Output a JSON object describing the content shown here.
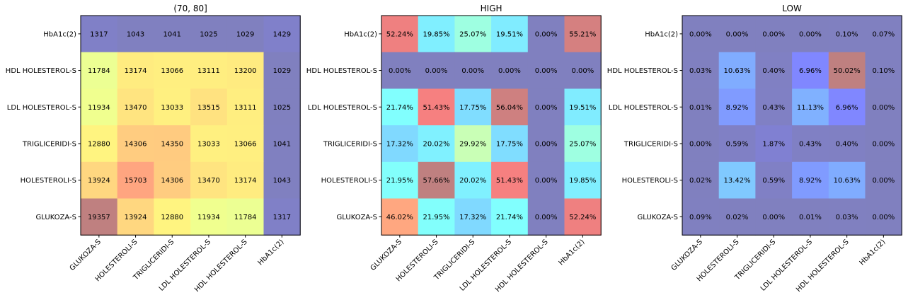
{
  "chart_data": [
    {
      "type": "heatmap",
      "title": "(70, 80]",
      "x_categories": [
        "GLUKOZA-S",
        "HOLESTEROLI-S",
        "TRIGLICERIDI-S",
        "LDL HOLESTEROL-S",
        "HDL HOLESTEROL-S",
        "HbA1c(2)"
      ],
      "y_categories": [
        "HbA1c(2)",
        "HDL HOLESTEROL-S",
        "LDL HOLESTEROL-S",
        "TRIGLICERIDI-S",
        "HOLESTEROLI-S",
        "GLUKOZA-S"
      ],
      "values": [
        [
          1317,
          1043,
          1041,
          1025,
          1029,
          1429
        ],
        [
          11784,
          13174,
          13066,
          13111,
          13200,
          1029
        ],
        [
          11934,
          13470,
          13033,
          13515,
          13111,
          1025
        ],
        [
          12880,
          14306,
          14350,
          13033,
          13066,
          1041
        ],
        [
          13924,
          15703,
          14306,
          13470,
          13174,
          1043
        ],
        [
          19357,
          13924,
          12880,
          11934,
          11784,
          1317
        ]
      ],
      "labels": [
        [
          "1317",
          "1043",
          "1041",
          "1025",
          "1029",
          "1429"
        ],
        [
          "11784",
          "13174",
          "13066",
          "13111",
          "13200",
          "1029"
        ],
        [
          "11934",
          "13470",
          "13033",
          "13515",
          "13111",
          "1025"
        ],
        [
          "12880",
          "14306",
          "14350",
          "13033",
          "13066",
          "1041"
        ],
        [
          "13924",
          "15703",
          "14306",
          "13470",
          "13174",
          "1043"
        ],
        [
          "19357",
          "13924",
          "12880",
          "11934",
          "11784",
          "1317"
        ]
      ],
      "colorscale": "jet",
      "alpha": 0.5
    },
    {
      "type": "heatmap",
      "title": "HIGH",
      "x_categories": [
        "GLUKOZA-S",
        "HOLESTEROLI-S",
        "TRIGLICERIDI-S",
        "LDL HOLESTEROL-S",
        "HDL HOLESTEROL-S",
        "HbA1c(2)"
      ],
      "y_categories": [
        "HbA1c(2)",
        "HDL HOLESTEROL-S",
        "LDL HOLESTEROL-S",
        "TRIGLICERIDI-S",
        "HOLESTEROLI-S",
        "GLUKOZA-S"
      ],
      "values": [
        [
          52.24,
          19.85,
          25.07,
          19.51,
          0.0,
          55.21
        ],
        [
          0.0,
          0.0,
          0.0,
          0.0,
          0.0,
          0.0
        ],
        [
          21.74,
          51.43,
          17.75,
          56.04,
          0.0,
          19.51
        ],
        [
          17.32,
          20.02,
          29.92,
          17.75,
          0.0,
          25.07
        ],
        [
          21.95,
          57.66,
          20.02,
          51.43,
          0.0,
          19.85
        ],
        [
          46.02,
          21.95,
          17.32,
          21.74,
          0.0,
          52.24
        ]
      ],
      "labels": [
        [
          "52.24%",
          "19.85%",
          "25.07%",
          "19.51%",
          "0.00%",
          "55.21%"
        ],
        [
          "0.00%",
          "0.00%",
          "0.00%",
          "0.00%",
          "0.00%",
          "0.00%"
        ],
        [
          "21.74%",
          "51.43%",
          "17.75%",
          "56.04%",
          "0.00%",
          "19.51%"
        ],
        [
          "17.32%",
          "20.02%",
          "29.92%",
          "17.75%",
          "0.00%",
          "25.07%"
        ],
        [
          "21.95%",
          "57.66%",
          "20.02%",
          "51.43%",
          "0.00%",
          "19.85%"
        ],
        [
          "46.02%",
          "21.95%",
          "17.32%",
          "21.74%",
          "0.00%",
          "52.24%"
        ]
      ],
      "colorscale": "jet",
      "alpha": 0.5
    },
    {
      "type": "heatmap",
      "title": "LOW",
      "x_categories": [
        "GLUKOZA-S",
        "HOLESTEROLI-S",
        "TRIGLICERIDI-S",
        "LDL HOLESTEROL-S",
        "HDL HOLESTEROL-S",
        "HbA1c(2)"
      ],
      "y_categories": [
        "HbA1c(2)",
        "HDL HOLESTEROL-S",
        "LDL HOLESTEROL-S",
        "TRIGLICERIDI-S",
        "HOLESTEROLI-S",
        "GLUKOZA-S"
      ],
      "values": [
        [
          0.0,
          0.0,
          0.0,
          0.0,
          0.1,
          0.07
        ],
        [
          0.03,
          10.63,
          0.4,
          6.96,
          50.02,
          0.1
        ],
        [
          0.01,
          8.92,
          0.43,
          11.13,
          6.96,
          0.0
        ],
        [
          0.0,
          0.59,
          1.87,
          0.43,
          0.4,
          0.0
        ],
        [
          0.02,
          13.42,
          0.59,
          8.92,
          10.63,
          0.0
        ],
        [
          0.09,
          0.02,
          0.0,
          0.01,
          0.03,
          0.0
        ]
      ],
      "labels": [
        [
          "0.00%",
          "0.00%",
          "0.00%",
          "0.00%",
          "0.10%",
          "0.07%"
        ],
        [
          "0.03%",
          "10.63%",
          "0.40%",
          "6.96%",
          "50.02%",
          "0.10%"
        ],
        [
          "0.01%",
          "8.92%",
          "0.43%",
          "11.13%",
          "6.96%",
          "0.00%"
        ],
        [
          "0.00%",
          "0.59%",
          "1.87%",
          "0.43%",
          "0.40%",
          "0.00%"
        ],
        [
          "0.02%",
          "13.42%",
          "0.59%",
          "8.92%",
          "10.63%",
          "0.00%"
        ],
        [
          "0.09%",
          "0.02%",
          "0.00%",
          "0.01%",
          "0.03%",
          "0.00%"
        ]
      ],
      "colorscale": "jet",
      "alpha": 0.5
    }
  ]
}
